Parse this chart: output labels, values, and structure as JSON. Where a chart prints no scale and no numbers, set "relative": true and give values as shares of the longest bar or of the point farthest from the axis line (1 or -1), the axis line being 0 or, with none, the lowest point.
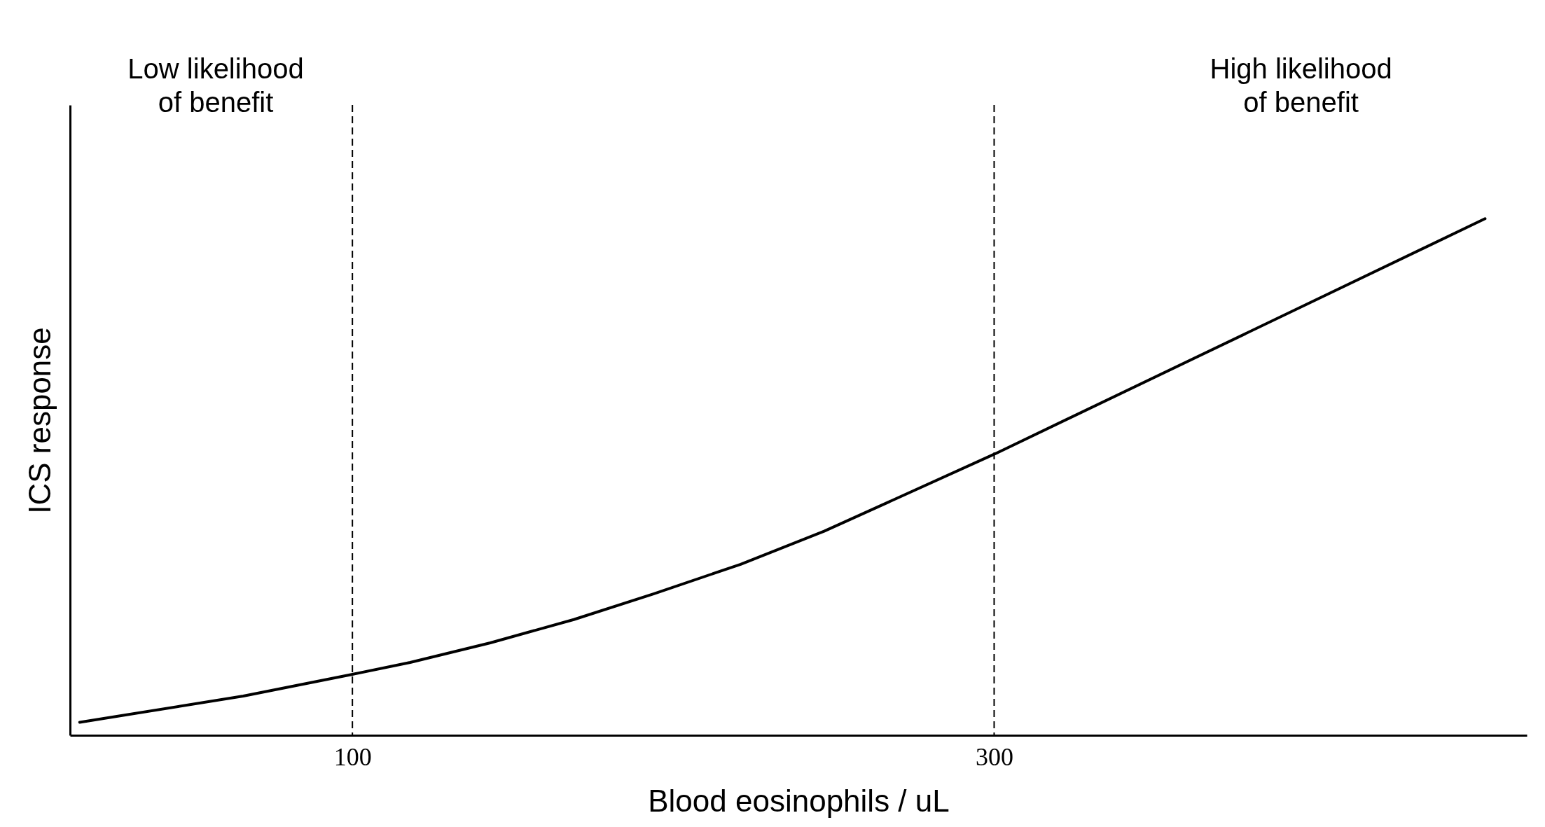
{
  "chart_data": {
    "type": "line",
    "xlabel": "Blood eosinophils / uL",
    "ylabel": "ICS response",
    "relative": true,
    "x": [
      15,
      66,
      100,
      118,
      143,
      169,
      194,
      221,
      247,
      300,
      453
    ],
    "series": [
      {
        "color": "#000000",
        "values": [
          0.025,
          0.076,
          0.118,
          0.141,
          0.179,
          0.224,
          0.274,
          0.331,
          0.395,
          0.544,
          1
        ]
      }
    ],
    "xlim": [
      12,
      466
    ],
    "xticks": [
      100,
      300
    ],
    "grid": false,
    "marker": "none",
    "line_style": "solid",
    "ref_lines": [
      {
        "axis": "x",
        "value": 100,
        "color": "#000000",
        "line_style": "dashed"
      },
      {
        "axis": "x",
        "value": 300,
        "color": "#000000",
        "line_style": "dashed"
      }
    ],
    "annotations": [
      "Low likelihood\nof benefit",
      "High likelihood\nof benefit"
    ]
  }
}
